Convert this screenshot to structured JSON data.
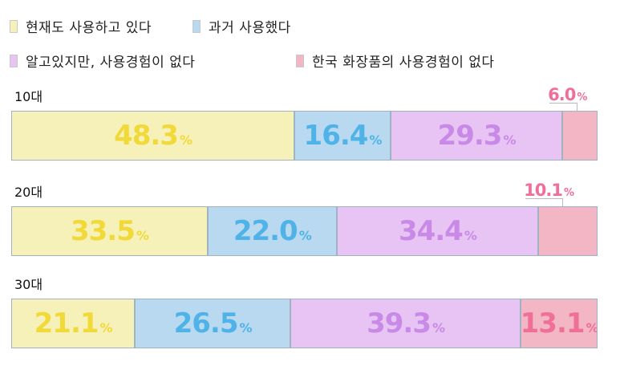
{
  "chart_data": {
    "type": "bar",
    "orientation": "horizontal-stacked-100",
    "categories": [
      "10대",
      "20대",
      "30대"
    ],
    "series": [
      {
        "name": "현재도 사용하고 있다",
        "values": [
          48.3,
          33.5,
          21.1
        ]
      },
      {
        "name": "과거 사용했다",
        "values": [
          16.4,
          22.0,
          26.5
        ]
      },
      {
        "name": "알고있지만, 사용경험이 없다",
        "values": [
          29.3,
          34.4,
          39.3
        ]
      },
      {
        "name": "한국 화장품의 사용경험이 없다",
        "values": [
          6.0,
          10.1,
          13.1
        ]
      }
    ],
    "value_labels": [
      [
        "48.3",
        "16.4",
        "29.3",
        "6.0"
      ],
      [
        "33.5",
        "22.0",
        "34.4",
        "10.1"
      ],
      [
        "21.1",
        "26.5",
        "39.3",
        "13.1"
      ]
    ],
    "unit": "%",
    "legend_position": "top",
    "grid": false
  },
  "colors": {
    "fills": [
      "#f5f1b8",
      "#b9d9f1",
      "#e7c4f3",
      "#f3b6c4"
    ],
    "labels": [
      "#f2d93a",
      "#4fb3e8",
      "#c88ae6",
      "#ef6f99"
    ]
  }
}
